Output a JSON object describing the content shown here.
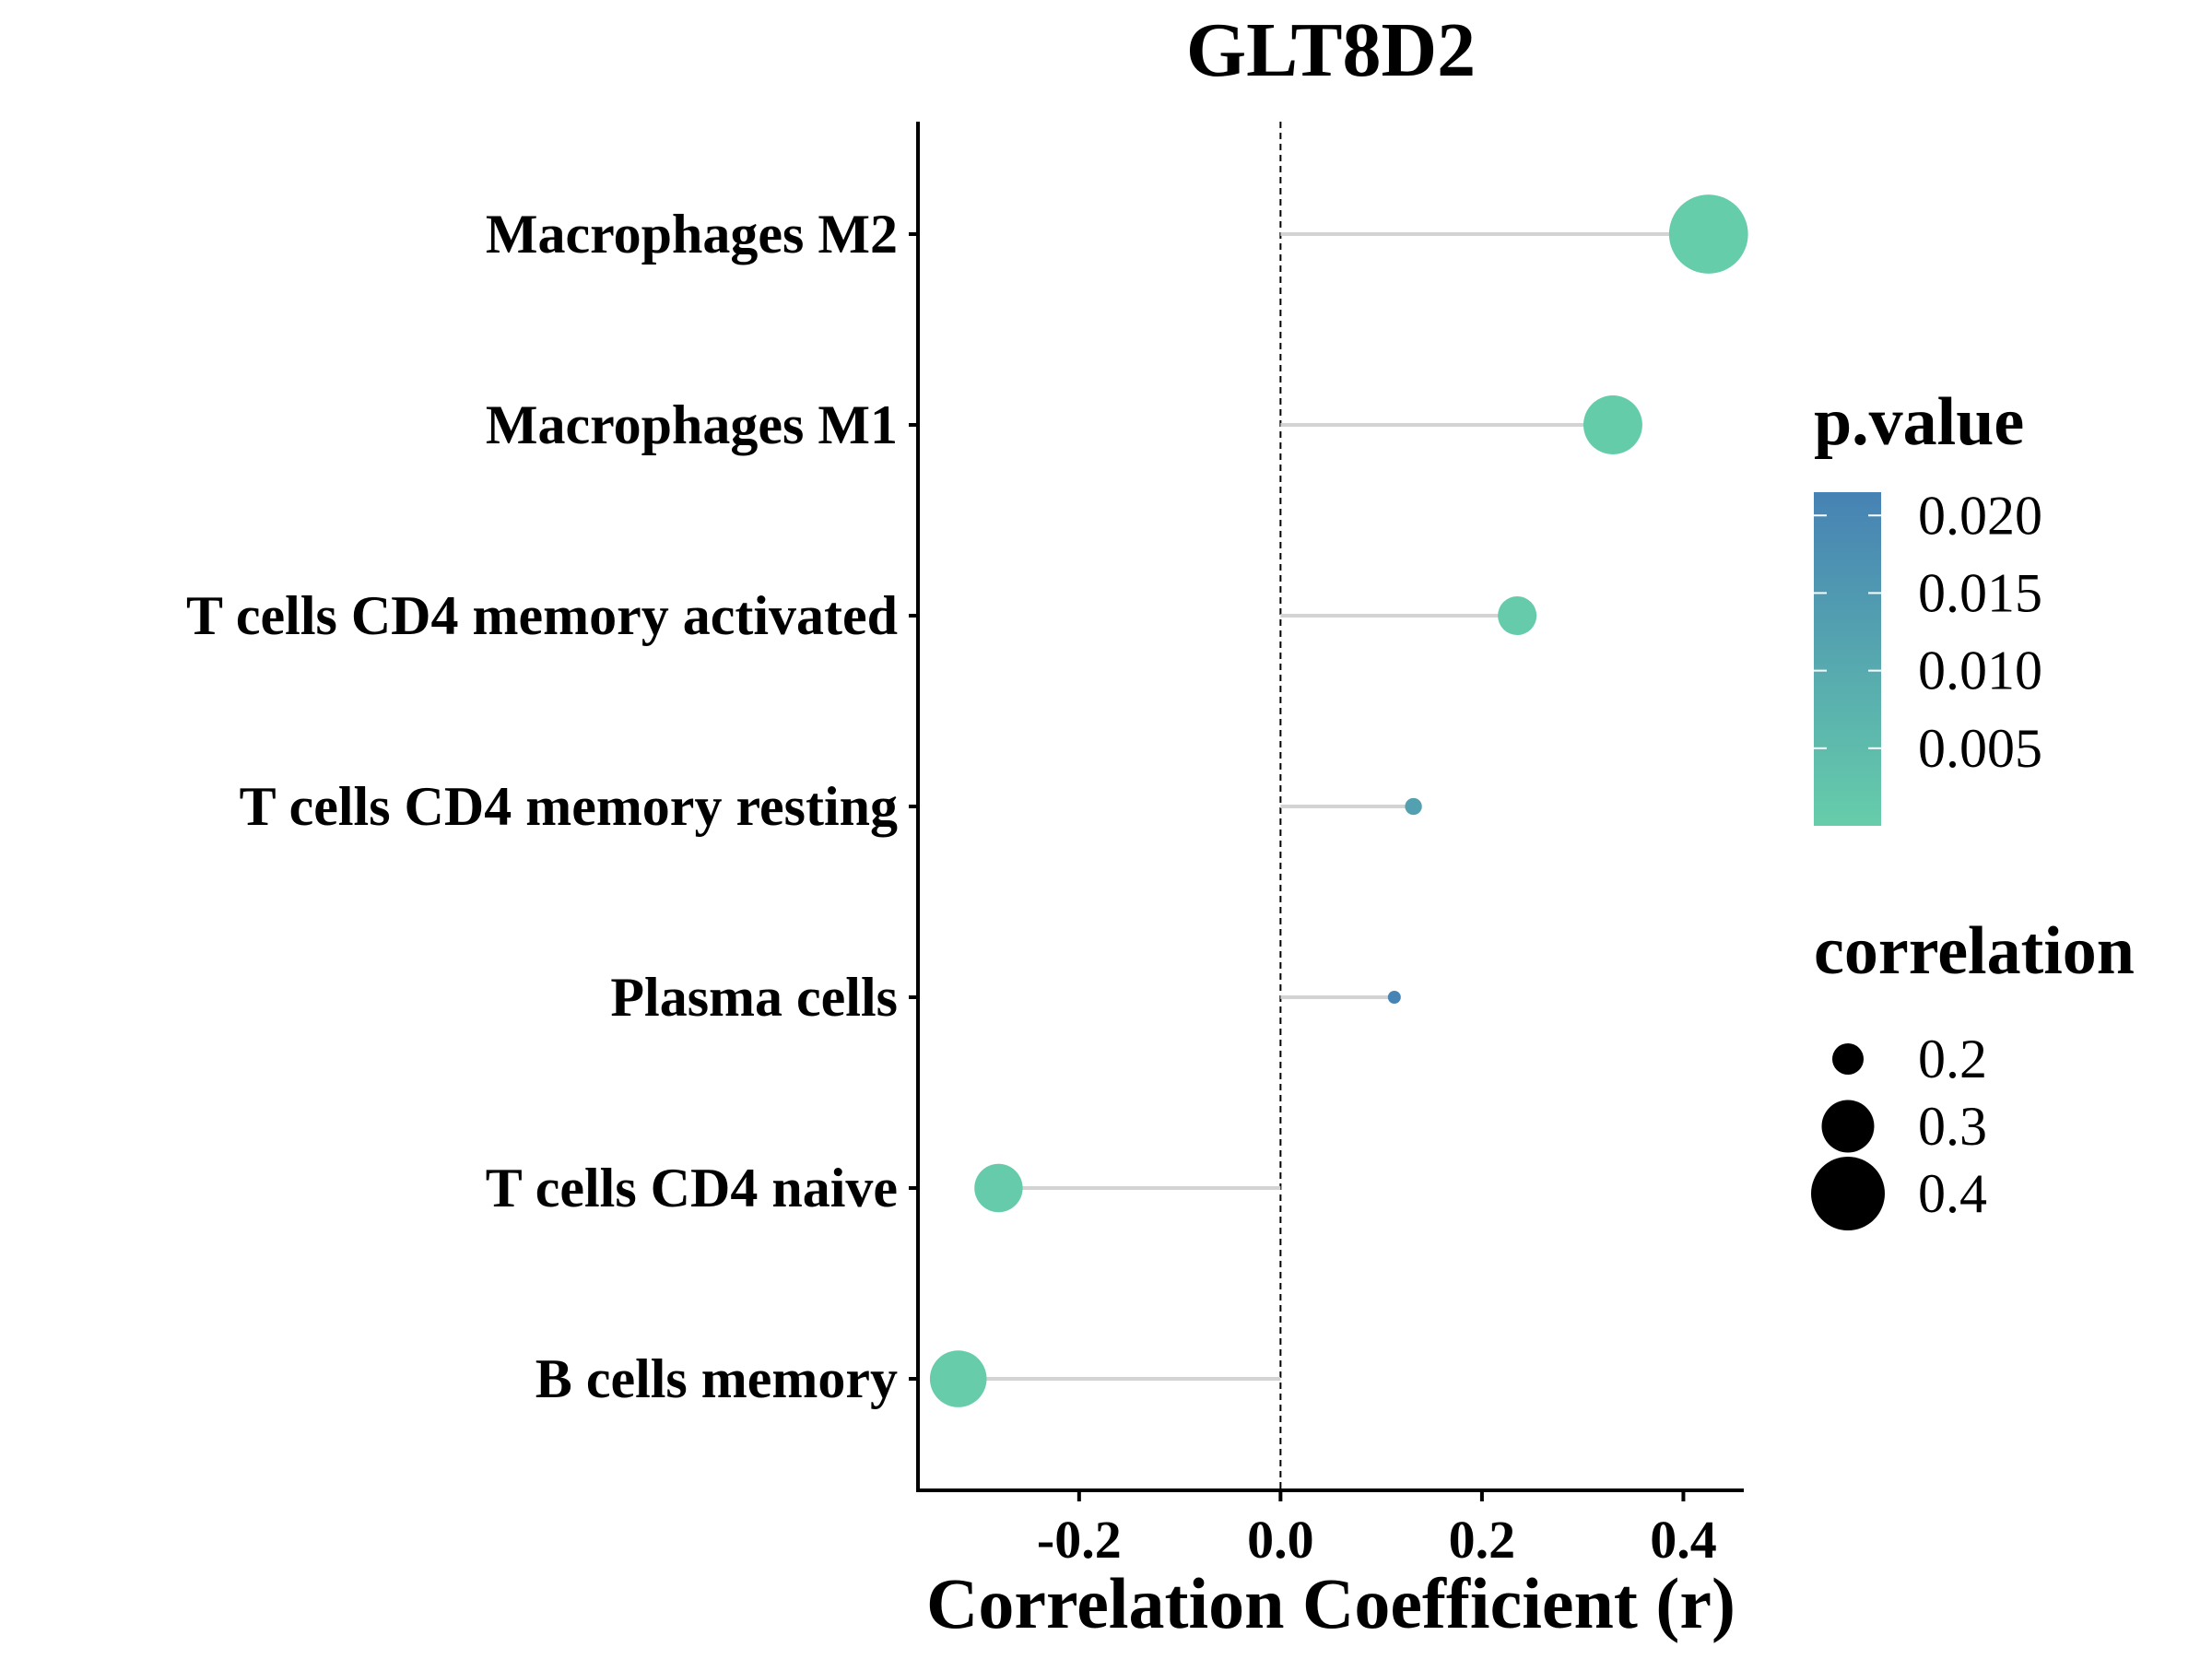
{
  "chart_data": {
    "type": "lollipop",
    "title": "GLT8D2",
    "xlabel": "Correlation Coefficient (r)",
    "ylabel": "",
    "xlim": [
      -0.36,
      0.46
    ],
    "xticks": [
      -0.2,
      0.0,
      0.2,
      0.4
    ],
    "xtick_labels": [
      "-0.2",
      "0.0",
      "0.2",
      "0.4"
    ],
    "reference_line": 0,
    "grid": false,
    "categories": [
      "Macrophages M2",
      "Macrophages M1",
      "T cells CD4 memory activated",
      "T cells CD4 memory resting",
      "Plasma cells",
      "T cells CD4 naive",
      "B cells memory"
    ],
    "values": [
      0.425,
      0.33,
      0.235,
      0.132,
      0.113,
      -0.28,
      -0.32
    ],
    "p_values": [
      0.0001,
      0.0004,
      0.0006,
      0.013,
      0.021,
      0.0005,
      0.0002
    ],
    "color_legend": {
      "title": "p.value",
      "ticks": [
        0.02,
        0.015,
        0.01,
        0.005
      ],
      "tick_labels": [
        "0.020",
        "0.015",
        "0.010",
        "0.005"
      ],
      "range": [
        0.0,
        0.0215
      ],
      "low_color": "#66CDAA",
      "high_color": "#4682B4"
    },
    "size_legend": {
      "title": "correlation",
      "values": [
        0.2,
        0.3,
        0.4
      ],
      "labels": [
        "0.2",
        "0.3",
        "0.4"
      ]
    },
    "legend_position": "right"
  }
}
